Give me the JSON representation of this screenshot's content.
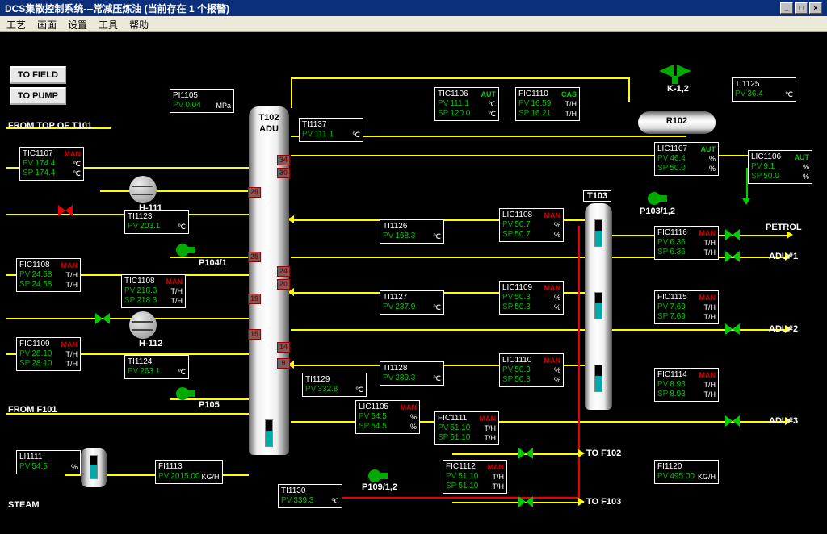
{
  "title": "DCS集散控制系统---常减压炼油    (当前存在 1 个报警)",
  "menu": [
    "工艺",
    "画面",
    "设置",
    "工具",
    "帮助"
  ],
  "buttons": {
    "to_field": "TO FIELD",
    "to_pump": "TO PUMP"
  },
  "labels": {
    "from_top": "FROM TOP OF T101",
    "from_f101": "FROM F101",
    "steam": "STEAM",
    "h111": "H-111",
    "h112": "H-112",
    "p104": "P104/1",
    "p105": "P105",
    "p109": "P109/1,2",
    "p103": "P103/1,2",
    "k12": "K-1,2",
    "r102": "R102",
    "t102": "T102",
    "adu": "ADU",
    "t103": "T103",
    "petrol": "PETROL",
    "adu1": "ADU#1",
    "adu2": "ADU#2",
    "adu3": "ADU#3",
    "to_f102": "TO F102",
    "to_f103": "TO F103"
  },
  "trays": {
    "t102": [
      "34",
      "30",
      "29",
      "25",
      "24",
      "20",
      "19",
      "15",
      "14",
      "9"
    ]
  },
  "tags": {
    "PI1105": {
      "pv": "0.04",
      "u": "MPa"
    },
    "TI1137": {
      "pv": "111.1",
      "u": "℃"
    },
    "TIC1107": {
      "mode": "MAN",
      "pv": "174.4",
      "sp": "174.4",
      "u": "℃"
    },
    "TI1123": {
      "pv": "203.1",
      "u": "℃"
    },
    "FIC1108": {
      "mode": "MAN",
      "pv": "24.58",
      "sp": "24.58",
      "u": "T/H"
    },
    "TIC1108": {
      "mode": "MAN",
      "pv": "218.3",
      "sp": "218.3",
      "u": "T/H"
    },
    "FIC1109": {
      "mode": "MAN",
      "pv": "28.10",
      "sp": "28.10",
      "u": "T/H"
    },
    "TI1124": {
      "pv": "263.1",
      "u": "℃"
    },
    "LI1111": {
      "pv": "54.5",
      "u": "%"
    },
    "FI1113": {
      "pv": "2015.00",
      "u": "KG/H"
    },
    "TI1130": {
      "pv": "339.3",
      "u": "℃"
    },
    "TI1126": {
      "pv": "168.3",
      "u": "℃"
    },
    "TI1127": {
      "pv": "237.9",
      "u": "℃"
    },
    "TI1129": {
      "pv": "332.8",
      "u": "℃"
    },
    "LIC1105": {
      "mode": "MAN",
      "pv": "54.5",
      "sp": "54.5",
      "u": "%"
    },
    "TI1128": {
      "pv": "289.3",
      "u": "℃"
    },
    "TIC1106": {
      "mode": "AUT",
      "pv": "111.1",
      "sp": "120.0",
      "u": "℃"
    },
    "FIC1110": {
      "mode": "CAS",
      "pv": "16.59",
      "sp": "16.21",
      "u": "T/H"
    },
    "LIC1108": {
      "mode": "MAN",
      "pv": "50.7",
      "sp": "50.7",
      "u": "%"
    },
    "LIC1109": {
      "mode": "MAN",
      "pv": "50.3",
      "sp": "50.3",
      "u": "%"
    },
    "LIC1110": {
      "mode": "MAN",
      "pv": "50.3",
      "sp": "50.3",
      "u": "%"
    },
    "FIC1111": {
      "mode": "MAN",
      "pv": "51.10",
      "sp": "51.10",
      "u": "T/H"
    },
    "FIC1112": {
      "mode": "MAN",
      "pv": "51.10",
      "sp": "51.10",
      "u": "T/H"
    },
    "LIC1107": {
      "mode": "AUT",
      "pv": "46.4",
      "sp": "50.0",
      "u": "%"
    },
    "LIC1106": {
      "mode": "AUT",
      "pv": "9.1",
      "sp": "50.0",
      "u": "%"
    },
    "TI1125": {
      "pv": "36.4",
      "u": "℃"
    },
    "FIC1116": {
      "mode": "MAN",
      "pv": "6.36",
      "sp": "6.36",
      "u": "T/H"
    },
    "FIC1115": {
      "mode": "MAN",
      "pv": "7.69",
      "sp": "7.69",
      "u": "T/H"
    },
    "FIC1114": {
      "mode": "MAN",
      "pv": "8.93",
      "sp": "8.93",
      "u": "T/H"
    },
    "FI1120": {
      "pv": "495.00",
      "u": "KG/H"
    }
  }
}
